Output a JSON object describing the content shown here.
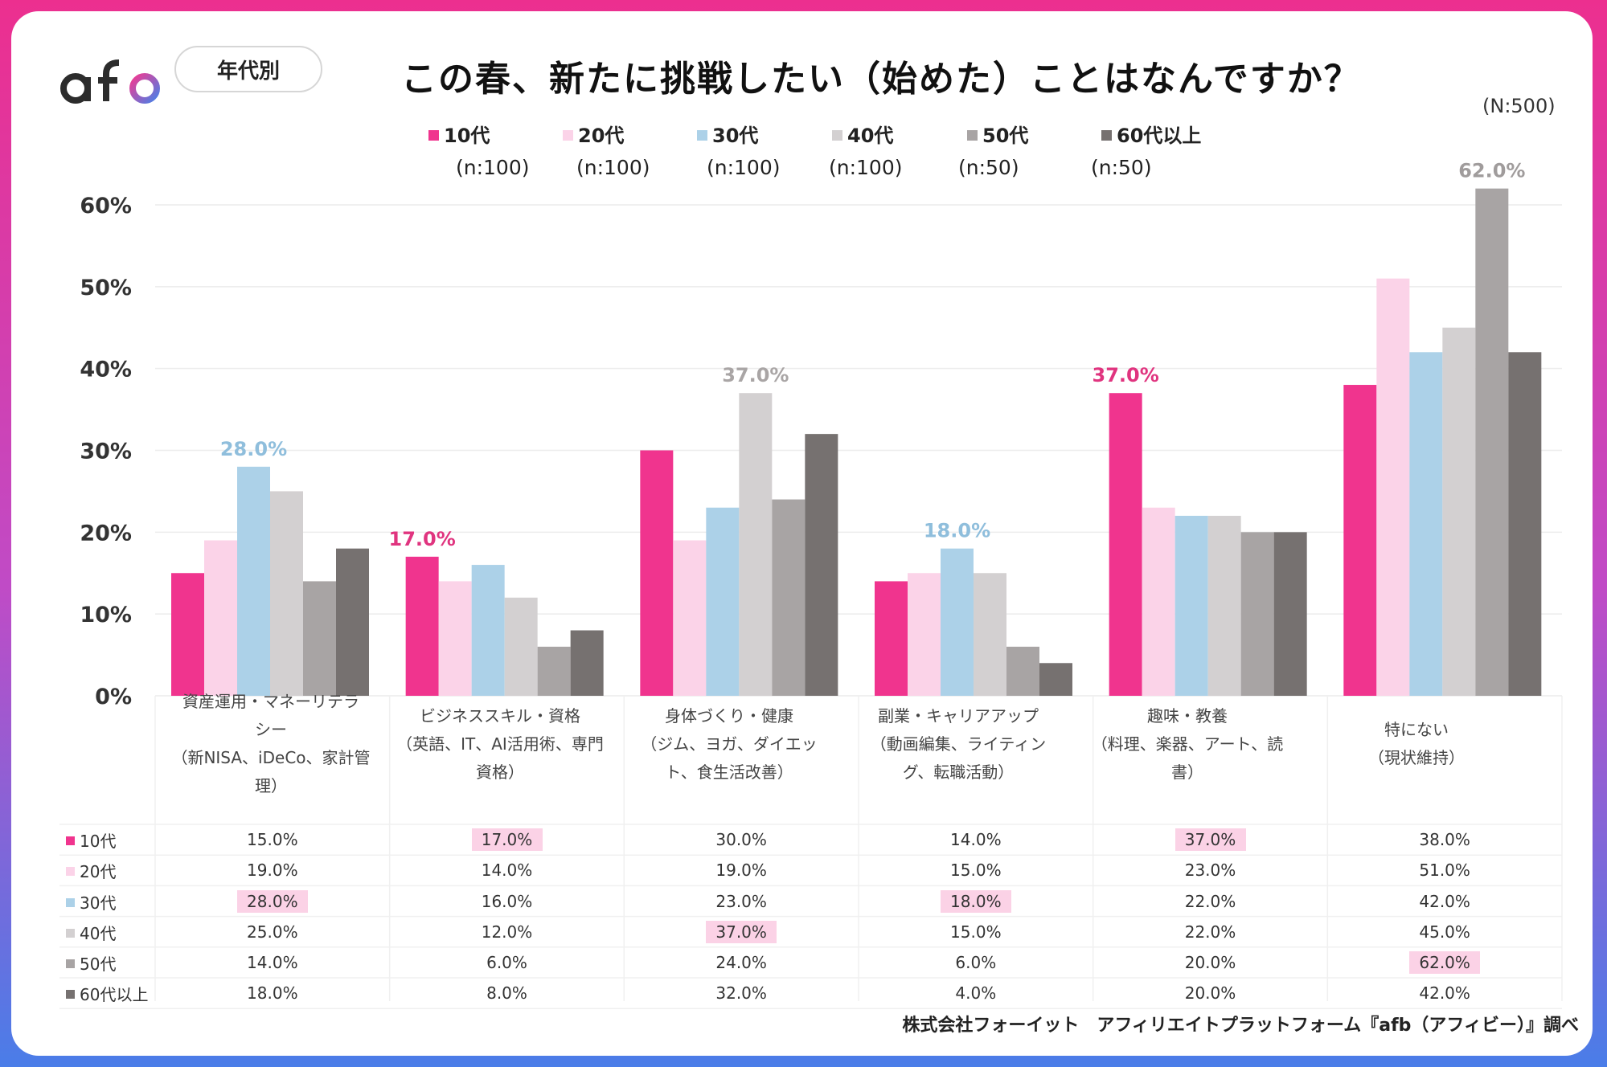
{
  "header": {
    "logo_text": "afb",
    "pill_label": "年代別",
    "title": "この春、新たに挑戦したい（始めた）ことはなんですか？",
    "total_n": "(N:500)"
  },
  "legend": [
    {
      "label": "10代",
      "n": "(n:100)",
      "color": "#f0348e"
    },
    {
      "label": "20代",
      "n": "(n:100)",
      "color": "#fbd3e8"
    },
    {
      "label": "30代",
      "n": "(n:100)",
      "color": "#acd1e8"
    },
    {
      "label": "40代",
      "n": "(n:100)",
      "color": "#d3d0d1"
    },
    {
      "label": "50代",
      "n": "(n:50)",
      "color": "#a8a4a4"
    },
    {
      "label": "60代以上",
      "n": "(n:50)",
      "color": "#767170"
    }
  ],
  "chart_data": {
    "type": "bar",
    "ylim": [
      0,
      60
    ],
    "yticks": [
      "0%",
      "10%",
      "20%",
      "30%",
      "40%",
      "50%",
      "60%"
    ],
    "grid": true,
    "categories": [
      [
        "資産運用・マネーリテラ",
        "シー",
        "（新NISA、iDeCo、家計管",
        "理）"
      ],
      [
        "ビジネススキル・資格",
        "（英語、IT、AI活用術、専門",
        "資格）"
      ],
      [
        "身体づくり・健康",
        "（ジム、ヨガ、ダイエッ",
        "ト、食生活改善）"
      ],
      [
        "副業・キャリアアップ",
        "（動画編集、ライティン",
        "グ、転職活動）"
      ],
      [
        "趣味・教養",
        "（料理、楽器、アート、読",
        "書）"
      ],
      [
        "特にない",
        "（現状維持）"
      ]
    ],
    "series": [
      {
        "name": "10代",
        "values": [
          15,
          17,
          30,
          14,
          37,
          38
        ]
      },
      {
        "name": "20代",
        "values": [
          19,
          14,
          19,
          15,
          23,
          51
        ]
      },
      {
        "name": "30代",
        "values": [
          28,
          16,
          23,
          18,
          22,
          42
        ]
      },
      {
        "name": "40代",
        "values": [
          25,
          12,
          37,
          15,
          22,
          45
        ]
      },
      {
        "name": "50代",
        "values": [
          14,
          6,
          24,
          6,
          20,
          62
        ]
      },
      {
        "name": "60代以上",
        "values": [
          18,
          8,
          32,
          4,
          20,
          42
        ]
      }
    ],
    "bar_labels": [
      {
        "category": 0,
        "series": 2,
        "text": "28.0%",
        "color": "#8fbedc"
      },
      {
        "category": 1,
        "series": 0,
        "text": "17.0%",
        "color": "#e0347f"
      },
      {
        "category": 2,
        "series": 3,
        "text": "37.0%",
        "color": "#a9a5a5"
      },
      {
        "category": 3,
        "series": 2,
        "text": "18.0%",
        "color": "#8fbedc"
      },
      {
        "category": 4,
        "series": 0,
        "text": "37.0%",
        "color": "#e0347f"
      },
      {
        "category": 5,
        "series": 4,
        "text": "62.0%",
        "color": "#a09c9c"
      }
    ]
  },
  "table": {
    "rows": [
      {
        "label": "10代",
        "cells": [
          "15.0%",
          "17.0%",
          "30.0%",
          "14.0%",
          "37.0%",
          "38.0%"
        ],
        "highlight": [
          1,
          4
        ]
      },
      {
        "label": "20代",
        "cells": [
          "19.0%",
          "14.0%",
          "19.0%",
          "15.0%",
          "23.0%",
          "51.0%"
        ],
        "highlight": []
      },
      {
        "label": "30代",
        "cells": [
          "28.0%",
          "16.0%",
          "23.0%",
          "18.0%",
          "22.0%",
          "42.0%"
        ],
        "highlight": [
          0,
          3
        ]
      },
      {
        "label": "40代",
        "cells": [
          "25.0%",
          "12.0%",
          "37.0%",
          "15.0%",
          "22.0%",
          "45.0%"
        ],
        "highlight": [
          2
        ]
      },
      {
        "label": "50代",
        "cells": [
          "14.0%",
          "6.0%",
          "24.0%",
          "6.0%",
          "20.0%",
          "62.0%"
        ],
        "highlight": [
          5
        ]
      },
      {
        "label": "60代以上",
        "cells": [
          "18.0%",
          "8.0%",
          "32.0%",
          "4.0%",
          "20.0%",
          "42.0%"
        ],
        "highlight": []
      }
    ]
  },
  "footer": "株式会社フォーイット　アフィリエイトプラットフォーム『afb（アフィビー）』調べ"
}
